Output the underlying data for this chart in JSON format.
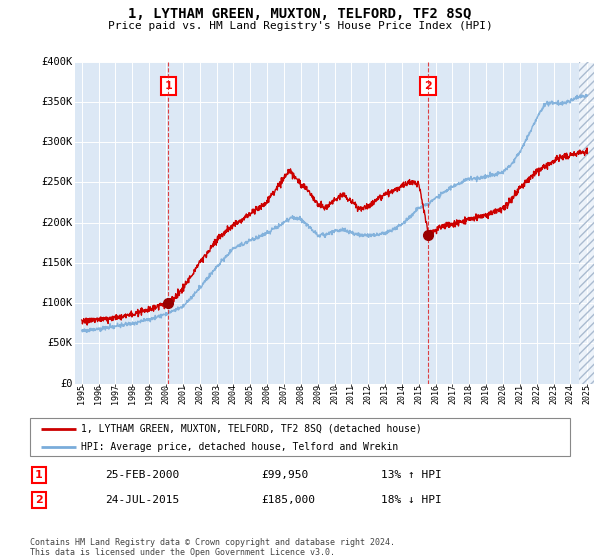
{
  "title": "1, LYTHAM GREEN, MUXTON, TELFORD, TF2 8SQ",
  "subtitle": "Price paid vs. HM Land Registry's House Price Index (HPI)",
  "background_color": "#ffffff",
  "plot_bg_color": "#dce8f5",
  "ylim": [
    0,
    400000
  ],
  "yticks": [
    0,
    50000,
    100000,
    150000,
    200000,
    250000,
    300000,
    350000,
    400000
  ],
  "ytick_labels": [
    "£0",
    "£50K",
    "£100K",
    "£150K",
    "£200K",
    "£250K",
    "£300K",
    "£350K",
    "£400K"
  ],
  "sale1_date": 2000.14,
  "sale1_price": 99950,
  "sale1_label": "1",
  "sale2_date": 2015.56,
  "sale2_price": 185000,
  "sale2_label": "2",
  "legend_line1": "1, LYTHAM GREEN, MUXTON, TELFORD, TF2 8SQ (detached house)",
  "legend_line2": "HPI: Average price, detached house, Telford and Wrekin",
  "table_row1": [
    "1",
    "25-FEB-2000",
    "£99,950",
    "13% ↑ HPI"
  ],
  "table_row2": [
    "2",
    "24-JUL-2015",
    "£185,000",
    "18% ↓ HPI"
  ],
  "footer": "Contains HM Land Registry data © Crown copyright and database right 2024.\nThis data is licensed under the Open Government Licence v3.0.",
  "line_color_red": "#cc0000",
  "line_color_blue": "#7aacda",
  "grid_color": "#ffffff",
  "hpi_keypoints": [
    [
      1995.0,
      65000
    ],
    [
      1996.0,
      67000
    ],
    [
      1997.0,
      70000
    ],
    [
      1998.0,
      74000
    ],
    [
      1999.0,
      79000
    ],
    [
      2000.0,
      86000
    ],
    [
      2001.0,
      95000
    ],
    [
      2002.0,
      118000
    ],
    [
      2003.0,
      145000
    ],
    [
      2004.0,
      168000
    ],
    [
      2005.0,
      178000
    ],
    [
      2006.0,
      188000
    ],
    [
      2007.0,
      200000
    ],
    [
      2007.5,
      207000
    ],
    [
      2008.0,
      204000
    ],
    [
      2008.5,
      195000
    ],
    [
      2009.0,
      185000
    ],
    [
      2009.5,
      185000
    ],
    [
      2010.0,
      190000
    ],
    [
      2010.5,
      192000
    ],
    [
      2011.0,
      188000
    ],
    [
      2011.5,
      185000
    ],
    [
      2012.0,
      185000
    ],
    [
      2012.5,
      185000
    ],
    [
      2013.0,
      188000
    ],
    [
      2013.5,
      192000
    ],
    [
      2014.0,
      198000
    ],
    [
      2014.5,
      208000
    ],
    [
      2015.0,
      218000
    ],
    [
      2015.5,
      222000
    ],
    [
      2016.0,
      230000
    ],
    [
      2016.5,
      238000
    ],
    [
      2017.0,
      245000
    ],
    [
      2017.5,
      250000
    ],
    [
      2018.0,
      255000
    ],
    [
      2018.5,
      255000
    ],
    [
      2019.0,
      258000
    ],
    [
      2019.5,
      260000
    ],
    [
      2020.0,
      263000
    ],
    [
      2020.5,
      272000
    ],
    [
      2021.0,
      288000
    ],
    [
      2021.5,
      308000
    ],
    [
      2022.0,
      330000
    ],
    [
      2022.5,
      348000
    ],
    [
      2023.0,
      350000
    ],
    [
      2023.5,
      348000
    ],
    [
      2024.0,
      352000
    ],
    [
      2024.5,
      356000
    ],
    [
      2025.0,
      358000
    ]
  ],
  "red_keypoints": [
    [
      1995.0,
      75000
    ],
    [
      1996.0,
      78000
    ],
    [
      1997.0,
      81000
    ],
    [
      1998.0,
      85000
    ],
    [
      1999.0,
      91000
    ],
    [
      2000.14,
      99950
    ],
    [
      2001.0,
      118000
    ],
    [
      2002.0,
      150000
    ],
    [
      2003.0,
      178000
    ],
    [
      2004.0,
      198000
    ],
    [
      2005.0,
      210000
    ],
    [
      2006.0,
      225000
    ],
    [
      2007.0,
      255000
    ],
    [
      2007.3,
      265000
    ],
    [
      2008.0,
      248000
    ],
    [
      2008.5,
      238000
    ],
    [
      2009.0,
      222000
    ],
    [
      2009.5,
      218000
    ],
    [
      2010.0,
      228000
    ],
    [
      2010.5,
      235000
    ],
    [
      2011.0,
      225000
    ],
    [
      2011.5,
      218000
    ],
    [
      2012.0,
      220000
    ],
    [
      2012.5,
      228000
    ],
    [
      2013.0,
      235000
    ],
    [
      2013.5,
      240000
    ],
    [
      2014.0,
      245000
    ],
    [
      2014.5,
      250000
    ],
    [
      2015.0,
      248000
    ],
    [
      2015.56,
      185000
    ],
    [
      2016.0,
      190000
    ],
    [
      2016.5,
      195000
    ],
    [
      2017.0,
      198000
    ],
    [
      2017.5,
      200000
    ],
    [
      2018.0,
      205000
    ],
    [
      2018.5,
      208000
    ],
    [
      2019.0,
      210000
    ],
    [
      2019.5,
      215000
    ],
    [
      2020.0,
      220000
    ],
    [
      2020.5,
      230000
    ],
    [
      2021.0,
      245000
    ],
    [
      2021.5,
      255000
    ],
    [
      2022.0,
      265000
    ],
    [
      2022.5,
      272000
    ],
    [
      2023.0,
      278000
    ],
    [
      2023.5,
      282000
    ],
    [
      2024.0,
      285000
    ],
    [
      2024.5,
      288000
    ],
    [
      2025.0,
      290000
    ]
  ]
}
